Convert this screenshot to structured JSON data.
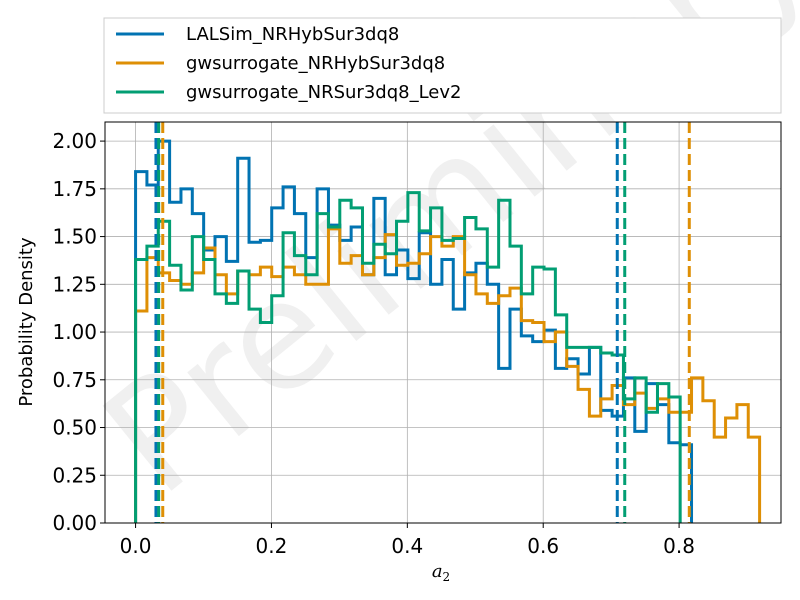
{
  "chart_data": {
    "type": "histogram",
    "title": "",
    "xlabel_main": "a",
    "xlabel_sub": "2",
    "ylabel": "Probability Density",
    "xlim": [
      -0.045,
      0.95
    ],
    "ylim": [
      0.0,
      2.1
    ],
    "grid": true,
    "legend_position": "top, above plot",
    "watermark": "Preliminary",
    "x_ticks": [
      0.0,
      0.2,
      0.4,
      0.6,
      0.8
    ],
    "x_tick_labels": [
      "0.0",
      "0.2",
      "0.4",
      "0.6",
      "0.8"
    ],
    "y_ticks": [
      0.0,
      0.25,
      0.5,
      0.75,
      1.0,
      1.25,
      1.5,
      1.75,
      2.0
    ],
    "y_tick_labels": [
      "0.00",
      "0.25",
      "0.50",
      "0.75",
      "1.00",
      "1.25",
      "1.50",
      "1.75",
      "2.00"
    ],
    "series": [
      {
        "name": "LALSim_NRHybSur3dq8",
        "color": "#0173b2",
        "bin_start": 0.0,
        "bin_width": 0.0167,
        "values": [
          1.84,
          1.77,
          2.0,
          1.68,
          1.75,
          1.62,
          1.43,
          1.5,
          1.37,
          1.91,
          1.47,
          1.48,
          1.65,
          1.76,
          1.62,
          1.39,
          1.75,
          1.56,
          1.48,
          1.55,
          1.3,
          1.7,
          1.3,
          1.43,
          1.28,
          1.52,
          1.25,
          1.38,
          1.12,
          1.31,
          1.36,
          1.25,
          0.81,
          1.12,
          0.98,
          0.95,
          1.01,
          0.81,
          0.86,
          0.78,
          0.92,
          0.59,
          0.56,
          0.76,
          0.48,
          0.73,
          0.62,
          0.42,
          0.41
        ]
      },
      {
        "name": "gwsurrogate_NRHybSur3dq8",
        "color": "#de8f05",
        "bin_start": 0.0,
        "bin_width": 0.0167,
        "values": [
          1.11,
          1.39,
          1.31,
          1.27,
          1.25,
          1.31,
          1.44,
          1.3,
          1.2,
          1.32,
          1.3,
          1.34,
          1.29,
          1.34,
          1.3,
          1.25,
          1.25,
          1.54,
          1.36,
          1.4,
          1.3,
          1.39,
          1.51,
          1.35,
          1.36,
          1.41,
          1.5,
          1.45,
          1.5,
          1.3,
          1.2,
          1.15,
          1.19,
          1.23,
          1.06,
          1.05,
          0.95,
          1.0,
          0.82,
          0.7,
          0.56,
          0.65,
          0.72,
          0.62,
          0.68,
          0.6,
          0.65,
          0.58,
          0.58,
          0.76,
          0.64,
          0.45,
          0.55,
          0.62,
          0.45
        ]
      },
      {
        "name": "gwsurrogate_NRSur3dq8_Lev2",
        "color": "#029e73",
        "bin_start": 0.0,
        "bin_width": 0.0167,
        "values": [
          1.38,
          1.45,
          1.58,
          1.35,
          1.22,
          1.5,
          1.38,
          1.2,
          1.15,
          1.32,
          1.12,
          1.05,
          1.19,
          1.52,
          1.4,
          1.3,
          1.62,
          1.55,
          1.69,
          1.65,
          1.36,
          1.46,
          1.41,
          1.58,
          1.73,
          1.53,
          1.65,
          1.48,
          1.49,
          1.6,
          1.54,
          1.34,
          1.69,
          1.45,
          1.2,
          1.34,
          1.33,
          1.09,
          0.92,
          0.92,
          0.92,
          0.89,
          0.88,
          0.65,
          0.76,
          0.58,
          0.73,
          0.66
        ]
      }
    ],
    "vertical_lines": [
      {
        "series": "LALSim_NRHybSur3dq8",
        "x": 0.03
      },
      {
        "series": "LALSim_NRHybSur3dq8",
        "x": 0.709
      },
      {
        "series": "gwsurrogate_NRSur3dq8_Lev2",
        "x": 0.034
      },
      {
        "series": "gwsurrogate_NRSur3dq8_Lev2",
        "x": 0.72
      },
      {
        "series": "gwsurrogate_NRHybSur3dq8",
        "x": 0.04
      },
      {
        "series": "gwsurrogate_NRHybSur3dq8",
        "x": 0.815
      }
    ]
  }
}
